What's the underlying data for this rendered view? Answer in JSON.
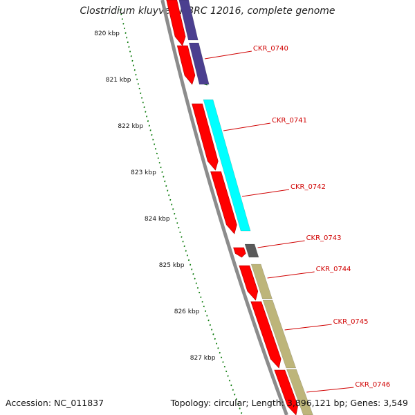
{
  "title": "Clostridium kluyveri NBRC 12016, complete genome",
  "footer": {
    "accession": "Accession: NC_011837",
    "summary": "Topology: circular; Length: 3,896,121 bp; Genes: 3,549"
  },
  "colors": {
    "backbone": "#8c8c8c",
    "ticks": "#0a7a0a",
    "forward_gene": "#ff0000",
    "label": "#d00000",
    "feature_purple": "#4b3f8f",
    "feature_cyan": "#00ffff",
    "feature_gray": "#5a5a5a",
    "feature_khaki": "#bdb57a"
  },
  "kbp_labels": [
    "820 kbp",
    "821 kbp",
    "822 kbp",
    "823 kbp",
    "824 kbp",
    "825 kbp",
    "826 kbp",
    "827 kbp"
  ],
  "gene_labels": [
    "CKR_0740",
    "CKR_0741",
    "CKR_0742",
    "CKR_0743",
    "CKR_0744",
    "CKR_0745",
    "CKR_0746"
  ]
}
